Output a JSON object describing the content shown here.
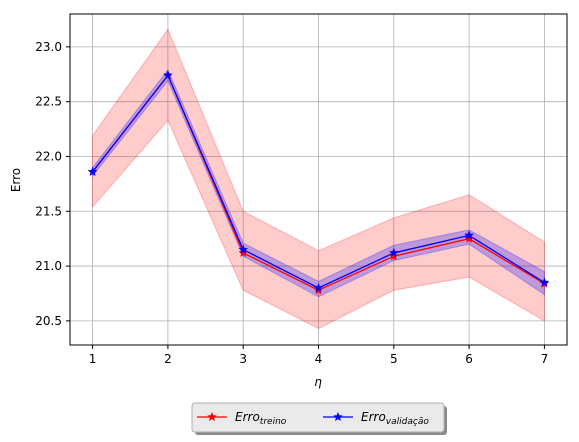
{
  "chart_data": {
    "type": "line",
    "xlabel": "η",
    "ylabel": "Erro",
    "x": [
      1,
      2,
      3,
      4,
      5,
      6,
      7
    ],
    "xlim": [
      0.7,
      7.3
    ],
    "ylim": [
      20.28,
      23.3
    ],
    "xticks": [
      "1",
      "2",
      "3",
      "4",
      "5",
      "6",
      "7"
    ],
    "yticks": [
      "20.5",
      "21.0",
      "21.5",
      "22.0",
      "22.5",
      "23.0"
    ],
    "grid": true,
    "legend_placement": "below-center",
    "series": [
      {
        "name": "Erro",
        "name_subscript": "treino",
        "color": "#ff0000",
        "band_color": "#ff0000",
        "values": [
          21.86,
          22.74,
          21.12,
          20.78,
          21.09,
          21.25,
          20.84
        ],
        "lower": [
          21.54,
          22.33,
          20.78,
          20.43,
          20.78,
          20.9,
          20.5
        ],
        "upper": [
          22.19,
          23.16,
          21.5,
          21.14,
          21.44,
          21.65,
          21.22
        ]
      },
      {
        "name": "Erro",
        "name_subscript": "validação",
        "color": "#0000ff",
        "band_color": "#0000ff",
        "values": [
          21.86,
          22.74,
          21.15,
          20.8,
          21.12,
          21.28,
          20.85
        ],
        "lower": [
          21.82,
          22.69,
          21.09,
          20.72,
          21.05,
          21.2,
          20.74
        ],
        "upper": [
          21.9,
          22.79,
          21.21,
          20.86,
          21.19,
          21.33,
          20.95
        ]
      }
    ]
  }
}
